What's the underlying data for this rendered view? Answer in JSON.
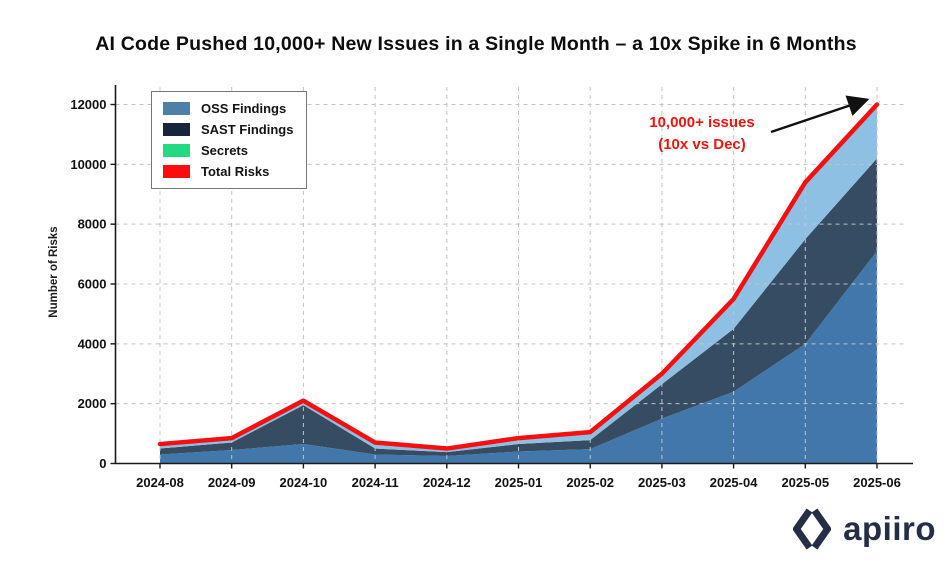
{
  "title": "AI Code Pushed 10,000+ New Issues in a Single Month – a 10x Spike in 6 Months",
  "chart_data": {
    "type": "area",
    "stacked": true,
    "title": "AI Code Pushed 10,000+ New Issues in a Single Month – a 10x Spike in 6 Months",
    "xlabel": "",
    "ylabel": "Number of Risks",
    "ylim": [
      0,
      12000
    ],
    "yticks": [
      0,
      2000,
      4000,
      6000,
      8000,
      10000,
      12000
    ],
    "grid": true,
    "grid_style": "dashed",
    "legend_position": "upper left",
    "categories": [
      "2024-08",
      "2024-09",
      "2024-10",
      "2024-11",
      "2024-12",
      "2025-01",
      "2025-02",
      "2025-03",
      "2025-04",
      "2025-05",
      "2025-06"
    ],
    "series": [
      {
        "name": "OSS Findings",
        "color": "#4277ab",
        "values": [
          300,
          450,
          650,
          300,
          250,
          400,
          480,
          1500,
          2400,
          4000,
          7100
        ]
      },
      {
        "name": "SAST Findings",
        "color": "#364c63",
        "values": [
          200,
          250,
          1300,
          200,
          130,
          250,
          300,
          1150,
          2100,
          3500,
          3100
        ]
      },
      {
        "name": "Secrets",
        "color": "#8ec0e3",
        "values": [
          150,
          150,
          150,
          200,
          120,
          200,
          270,
          350,
          1000,
          1900,
          1800
        ]
      }
    ],
    "total_line": {
      "name": "Total Risks",
      "color": "#f50f0f",
      "values": [
        650,
        850,
        2100,
        700,
        500,
        850,
        1050,
        3000,
        5500,
        9400,
        12000
      ]
    }
  },
  "legend": {
    "items": [
      {
        "label": "OSS Findings",
        "color": "#4e7fa6"
      },
      {
        "label": "SAST Findings",
        "color": "#16243c"
      },
      {
        "label": "Secrets",
        "color": "#23d981"
      },
      {
        "label": "Total Risks",
        "color": "#fb0d0d"
      }
    ]
  },
  "annotation": {
    "line1": "10,000+ issues",
    "line2": "(10x vs Dec)",
    "color": "#ee1410"
  },
  "axes": {
    "ylabel": "Number of Risks",
    "tick_color": "#111111"
  },
  "brand": {
    "wordmark": "apiiro",
    "color": "#242e47"
  }
}
